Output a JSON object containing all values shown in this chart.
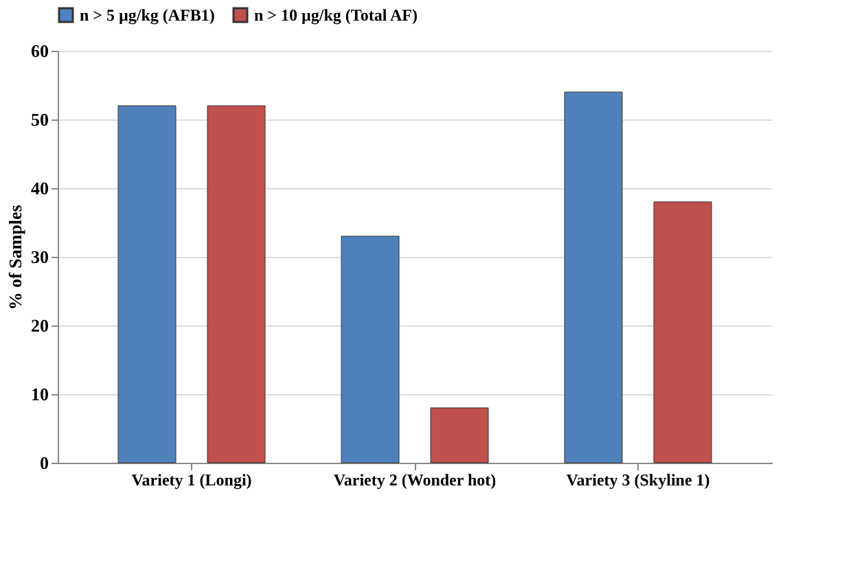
{
  "chart_data": {
    "type": "bar",
    "ylabel": "% of Samples",
    "categories": [
      "Variety 1 (Longi)",
      "Variety 2 (Wonder hot)",
      "Variety 3 (Skyline 1)"
    ],
    "series": [
      {
        "name": "n > 5 µg/kg (AFB1)",
        "color": "#4f81bd",
        "values": [
          52,
          33,
          54
        ]
      },
      {
        "name": "n > 10 µg/kg (Total AF)",
        "color": "#c0504d",
        "values": [
          52,
          8,
          38
        ]
      }
    ],
    "ylim": [
      0,
      60
    ],
    "yticks": [
      0,
      10,
      20,
      30,
      40,
      50,
      60
    ],
    "grid": "y",
    "legend": "top"
  }
}
